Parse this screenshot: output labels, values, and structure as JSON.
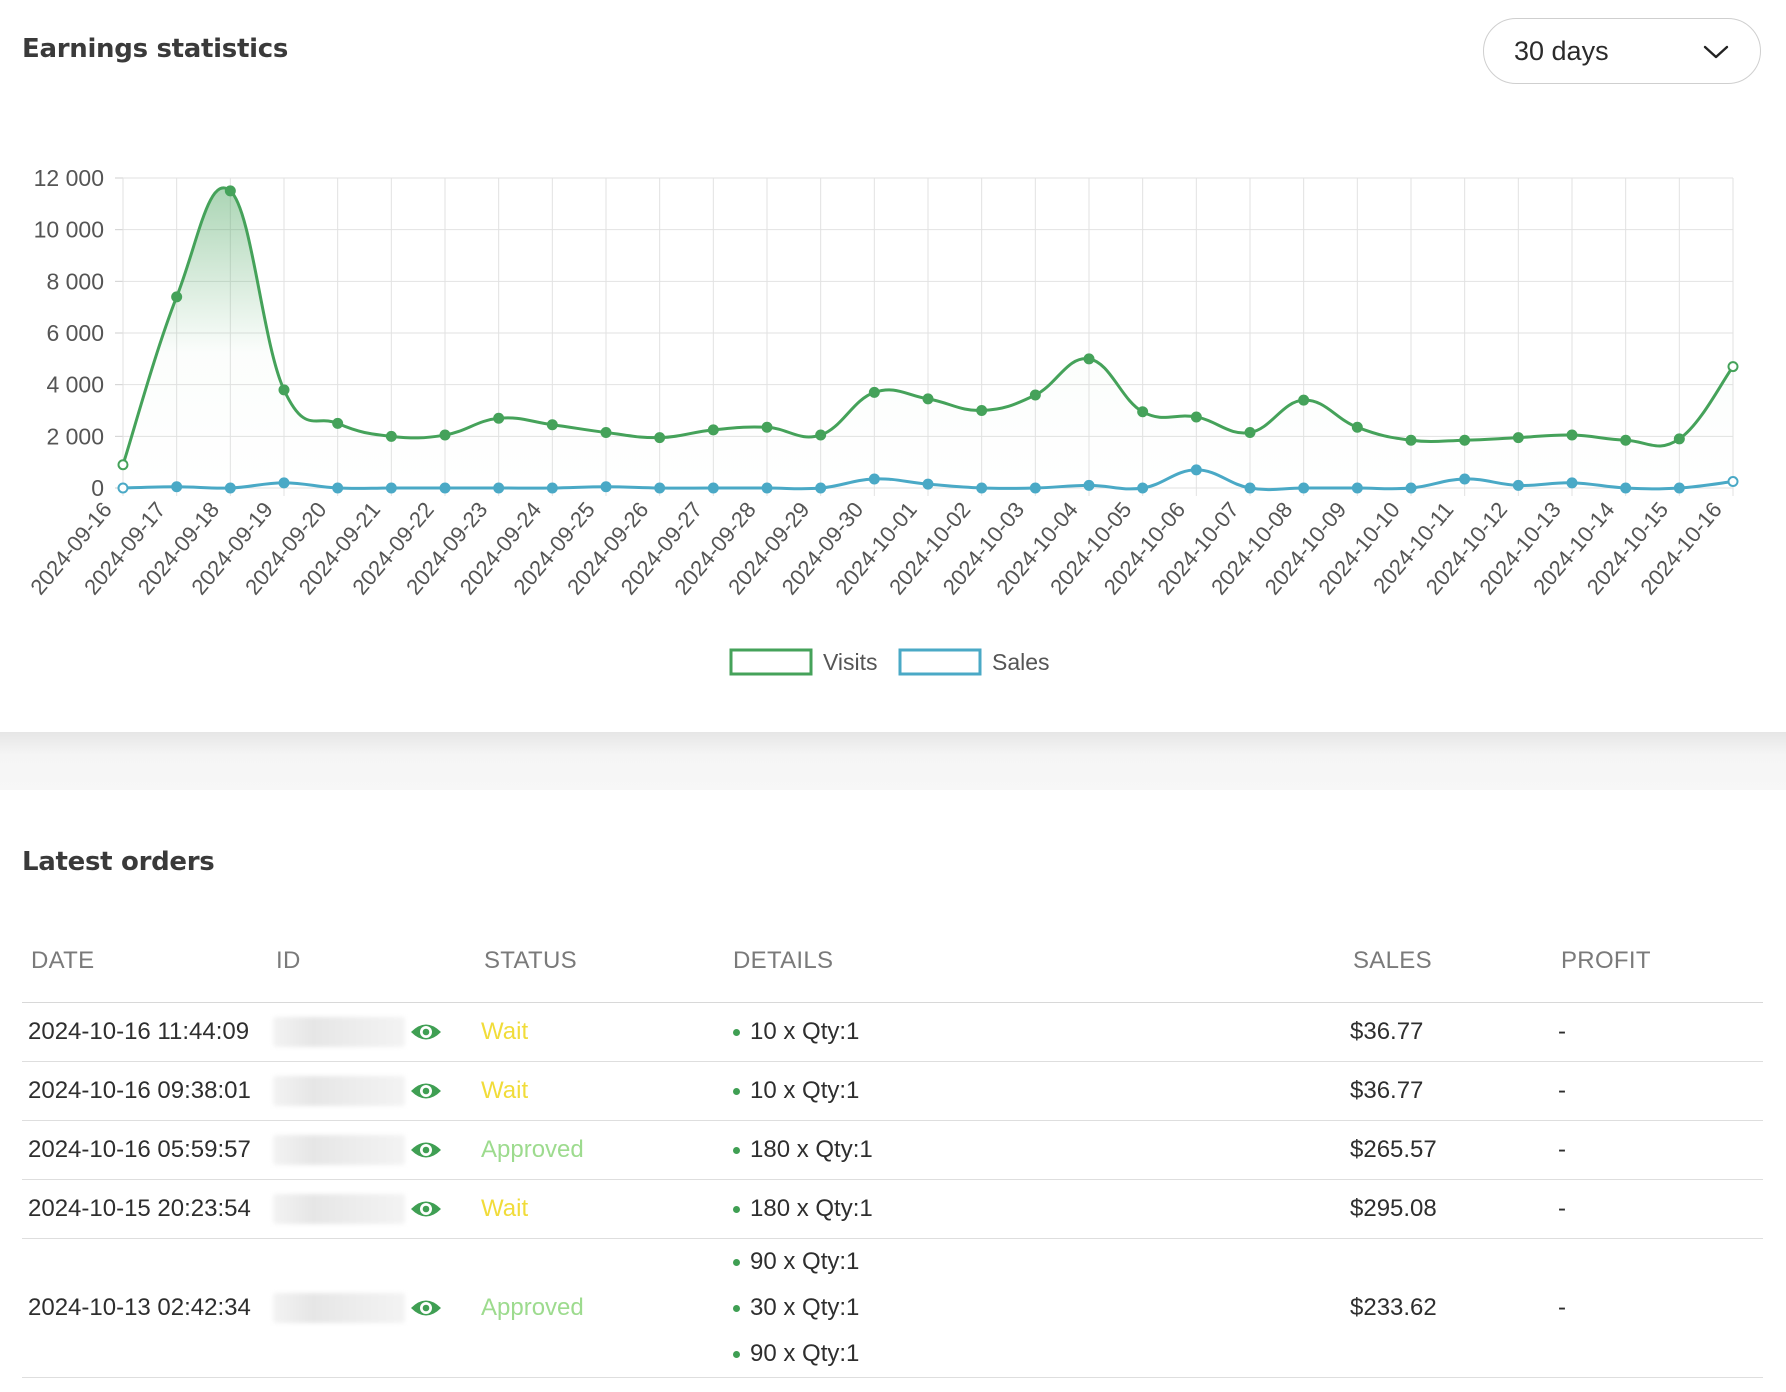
{
  "stats": {
    "title": "Earnings statistics",
    "range_select": {
      "value": "30 days"
    }
  },
  "chart_data": {
    "type": "line",
    "x": [
      "2024-09-16",
      "2024-09-17",
      "2024-09-18",
      "2024-09-19",
      "2024-09-20",
      "2024-09-21",
      "2024-09-22",
      "2024-09-23",
      "2024-09-24",
      "2024-09-25",
      "2024-09-26",
      "2024-09-27",
      "2024-09-28",
      "2024-09-29",
      "2024-09-30",
      "2024-10-01",
      "2024-10-02",
      "2024-10-03",
      "2024-10-04",
      "2024-10-05",
      "2024-10-06",
      "2024-10-07",
      "2024-10-08",
      "2024-10-09",
      "2024-10-10",
      "2024-10-11",
      "2024-10-12",
      "2024-10-13",
      "2024-10-14",
      "2024-10-15",
      "2024-10-16"
    ],
    "series": [
      {
        "name": "Visits",
        "color": "#45a25a",
        "values": [
          900,
          7400,
          11500,
          3800,
          2500,
          2000,
          2050,
          2700,
          2450,
          2150,
          1950,
          2250,
          2350,
          2050,
          3700,
          3450,
          3000,
          3600,
          5000,
          2950,
          2750,
          2150,
          3400,
          2350,
          1850,
          1850,
          1950,
          2050,
          1850,
          1900,
          4700
        ]
      },
      {
        "name": "Sales",
        "color": "#4aa9c6",
        "values": [
          0,
          50,
          0,
          200,
          0,
          0,
          0,
          0,
          0,
          50,
          0,
          0,
          0,
          0,
          350,
          150,
          0,
          0,
          100,
          0,
          700,
          0,
          0,
          0,
          0,
          350,
          100,
          200,
          0,
          0,
          250
        ]
      }
    ],
    "ylim": [
      0,
      12000
    ],
    "yticks": [
      "12 000",
      "10 000",
      "8 000",
      "6 000",
      "4 000",
      "2 000",
      "0"
    ],
    "ytick_values": [
      12000,
      10000,
      8000,
      6000,
      4000,
      2000,
      0
    ],
    "grid": true,
    "legend": "bottom"
  },
  "orders": {
    "title": "Latest orders",
    "columns": {
      "date": "DATE",
      "id": "ID",
      "status": "STATUS",
      "details": "DETAILS",
      "sales": "SALES",
      "profit": "PROFIT"
    },
    "rows": [
      {
        "date": "2024-10-16 11:44:09",
        "status": "Wait",
        "details": [
          "10 x Qty:1"
        ],
        "sales": "$36.77",
        "profit": "-"
      },
      {
        "date": "2024-10-16 09:38:01",
        "status": "Wait",
        "details": [
          "10 x Qty:1"
        ],
        "sales": "$36.77",
        "profit": "-"
      },
      {
        "date": "2024-10-16 05:59:57",
        "status": "Approved",
        "details": [
          "180 x Qty:1"
        ],
        "sales": "$265.57",
        "profit": "-"
      },
      {
        "date": "2024-10-15 20:23:54",
        "status": "Wait",
        "details": [
          "180 x Qty:1"
        ],
        "sales": "$295.08",
        "profit": "-"
      },
      {
        "date": "2024-10-13 02:42:34",
        "status": "Approved",
        "details": [
          "90 x Qty:1",
          "30 x Qty:1",
          "90 x Qty:1"
        ],
        "sales": "$233.62",
        "profit": "-"
      }
    ],
    "status_colors": {
      "Wait": "#f1dc3a",
      "Approved": "#9ddb8e"
    },
    "icons": {
      "view": "eye-icon"
    }
  }
}
